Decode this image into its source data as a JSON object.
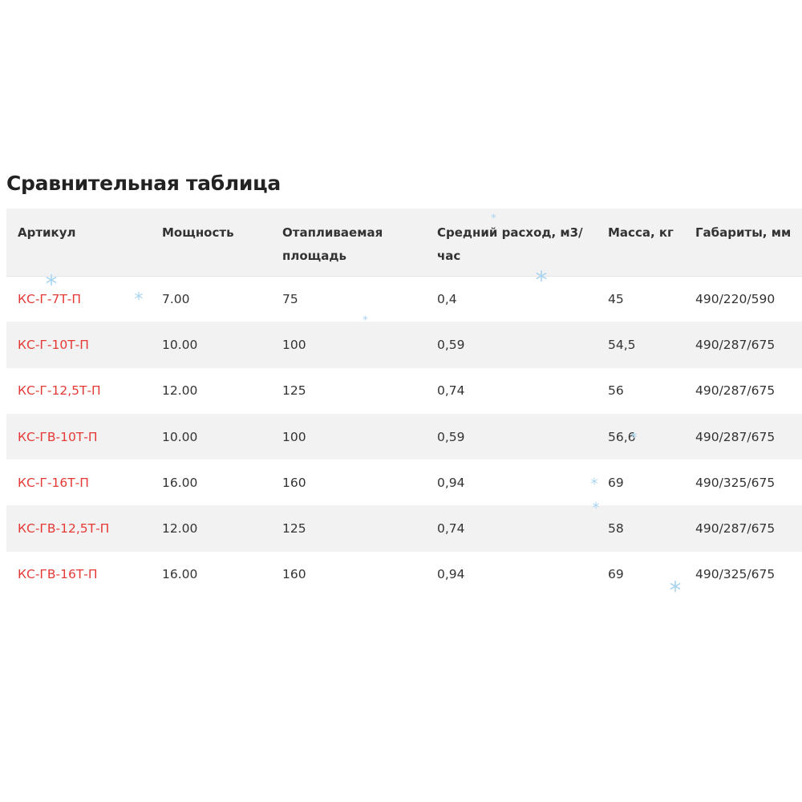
{
  "title": "Сравнительная таблица",
  "columns": [
    "Артикул",
    "Мощность",
    "Отапливаемая площадь",
    "Средний расход, м3/час",
    "Масса, кг",
    "Габариты, мм"
  ],
  "rows": [
    [
      "КС-Г-7Т-П",
      "7.00",
      "75",
      "0,4",
      "45",
      "490/220/590"
    ],
    [
      "КС-Г-10Т-П",
      "10.00",
      "100",
      "0,59",
      "54,5",
      "490/287/675"
    ],
    [
      "КС-Г-12,5Т-П",
      "12.00",
      "125",
      "0,74",
      "56",
      "490/287/675"
    ],
    [
      "КС-ГВ-10Т-П",
      "10.00",
      "100",
      "0,59",
      "56,6",
      "490/287/675"
    ],
    [
      "КС-Г-16Т-П",
      "16.00",
      "160",
      "0,94",
      "69",
      "490/325/675"
    ],
    [
      "КС-ГВ-12,5Т-П",
      "12.00",
      "125",
      "0,74",
      "58",
      "490/287/675"
    ],
    [
      "КС-ГВ-16Т-П",
      "16.00",
      "160",
      "0,94",
      "69",
      "490/325/675"
    ]
  ],
  "colors": {
    "sku": "#e53935",
    "header_bg": "#f2f2f2",
    "snowflake": "#a9d4f0"
  },
  "decorations": {
    "snowflake_icon": "snowflake-icon"
  }
}
